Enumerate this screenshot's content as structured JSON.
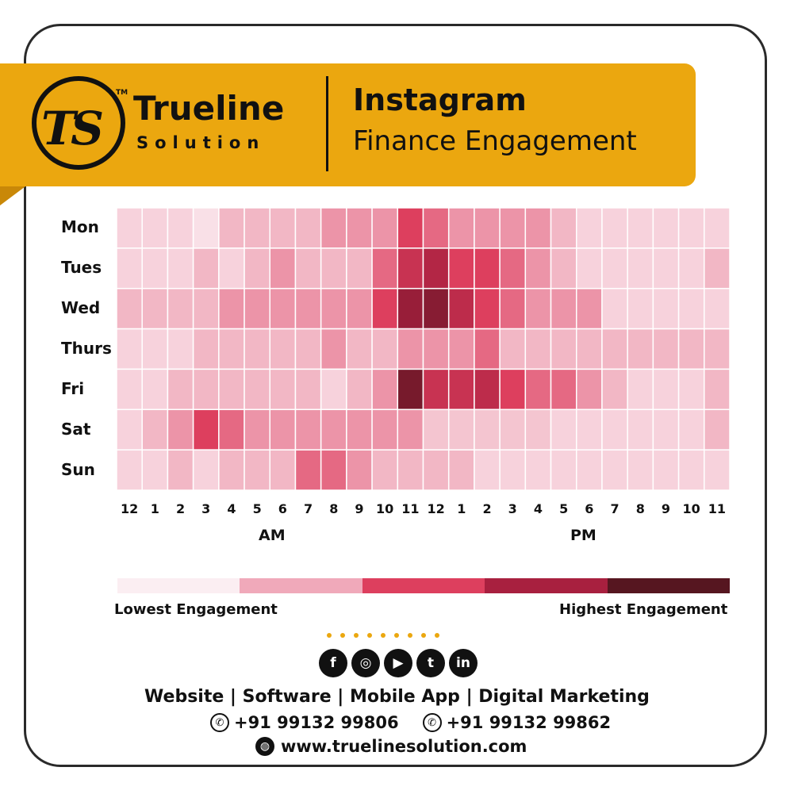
{
  "brand": {
    "mark": "TS",
    "tm": "TM",
    "name": "Trueline",
    "sub": "Solution"
  },
  "header": {
    "title": "Instagram",
    "subtitle": "Finance Engagement"
  },
  "chart_data": {
    "type": "heatmap",
    "title": "Instagram Finance Engagement",
    "rows": [
      "Mon",
      "Tues",
      "Wed",
      "Thurs",
      "Fri",
      "Sat",
      "Sun"
    ],
    "columns": [
      "12",
      "1",
      "2",
      "3",
      "4",
      "5",
      "6",
      "7",
      "8",
      "9",
      "10",
      "11",
      "12",
      "1",
      "2",
      "3",
      "4",
      "5",
      "6",
      "7",
      "8",
      "9",
      "10",
      "11"
    ],
    "period_labels": [
      "AM",
      "PM"
    ],
    "scale_min": 0,
    "scale_max": 10,
    "values": [
      [
        1,
        1,
        1,
        0.5,
        2,
        2,
        2,
        2,
        3,
        3,
        3,
        5,
        4,
        3,
        3,
        3,
        3,
        2,
        1,
        1,
        1,
        1,
        1,
        1
      ],
      [
        1,
        1,
        1,
        2,
        1,
        2,
        3,
        2,
        2,
        2,
        4,
        6,
        7,
        5,
        5,
        4,
        3,
        2,
        1,
        1,
        1,
        1,
        1,
        2
      ],
      [
        2,
        2,
        2,
        2,
        3,
        3,
        3,
        3,
        3,
        3,
        5,
        8,
        8.5,
        6.5,
        5,
        4,
        3,
        3,
        3,
        1,
        1,
        1,
        1,
        1
      ],
      [
        1,
        1,
        1,
        2,
        2,
        2,
        2,
        2,
        3,
        2,
        2,
        3,
        3,
        3,
        4,
        2,
        2,
        2,
        2,
        2,
        2,
        2,
        2,
        2
      ],
      [
        1,
        1,
        2,
        2,
        2,
        2,
        2,
        2,
        1,
        2,
        3,
        9,
        6,
        6,
        6.5,
        5,
        4,
        4,
        3,
        2,
        1,
        1,
        1,
        2
      ],
      [
        1,
        2,
        3,
        5,
        4,
        3,
        3,
        3,
        3,
        3,
        3,
        3,
        1.5,
        1.5,
        1.5,
        1.5,
        1.5,
        1,
        1,
        1,
        1,
        1,
        1,
        2
      ],
      [
        1,
        1,
        2,
        1,
        2,
        2,
        2,
        4,
        4,
        3,
        2,
        2,
        2,
        2,
        1,
        1,
        1,
        1,
        1,
        1,
        1,
        1,
        1,
        1
      ]
    ],
    "colors": [
      "#fbeef2",
      "#f0a9ba",
      "#dd3f5e",
      "#a8203f",
      "#561620"
    ],
    "legend": {
      "low_label": "Lowest Engagement",
      "high_label": "Highest Engagement",
      "placement": "bottom"
    }
  },
  "footer": {
    "social_icons": [
      "facebook-icon",
      "instagram-icon",
      "youtube-icon",
      "twitter-icon",
      "linkedin-icon"
    ],
    "social_glyphs": [
      "f",
      "◎",
      "▶",
      "t",
      "in"
    ],
    "services": "Website | Software | Mobile App | Digital Marketing",
    "phones": [
      "+91 99132 99806",
      "+91 99132 99862"
    ],
    "website": "www.truelinesolution.com"
  }
}
